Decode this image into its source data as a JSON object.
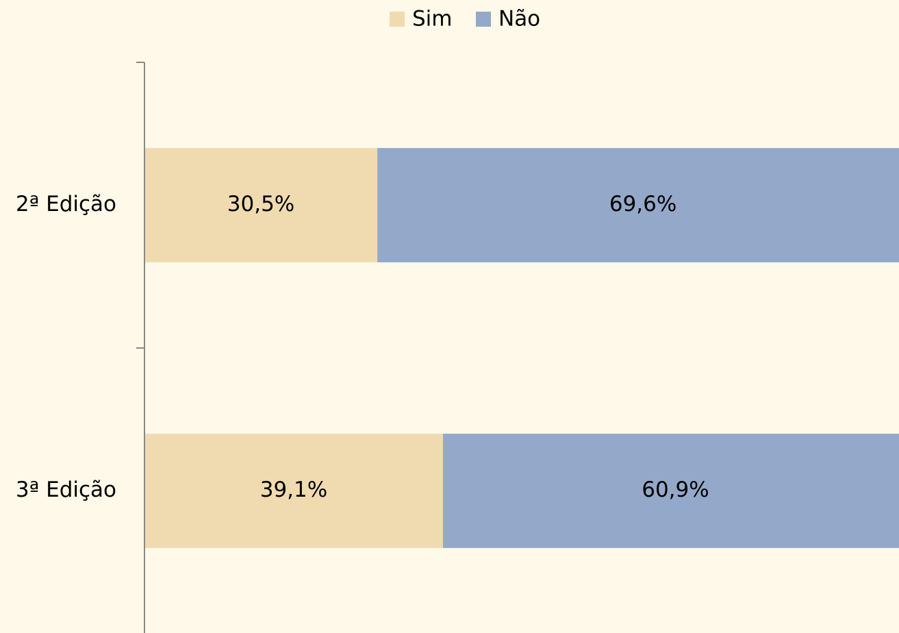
{
  "chart_data": {
    "type": "stacked-bar-horizontal",
    "categories": [
      "2ª Edição",
      "3ª Edição"
    ],
    "series": [
      {
        "name": "Sim",
        "color": "#f0dab0",
        "values": [
          30.5,
          39.1
        ],
        "value_labels": [
          "30,5%",
          "39,1%"
        ]
      },
      {
        "name": "Não",
        "color": "#94a9c9",
        "values": [
          69.6,
          60.9
        ],
        "value_labels": [
          "69,6%",
          "60,9%"
        ]
      }
    ],
    "xlim": [
      0,
      100
    ],
    "legend": "top"
  }
}
